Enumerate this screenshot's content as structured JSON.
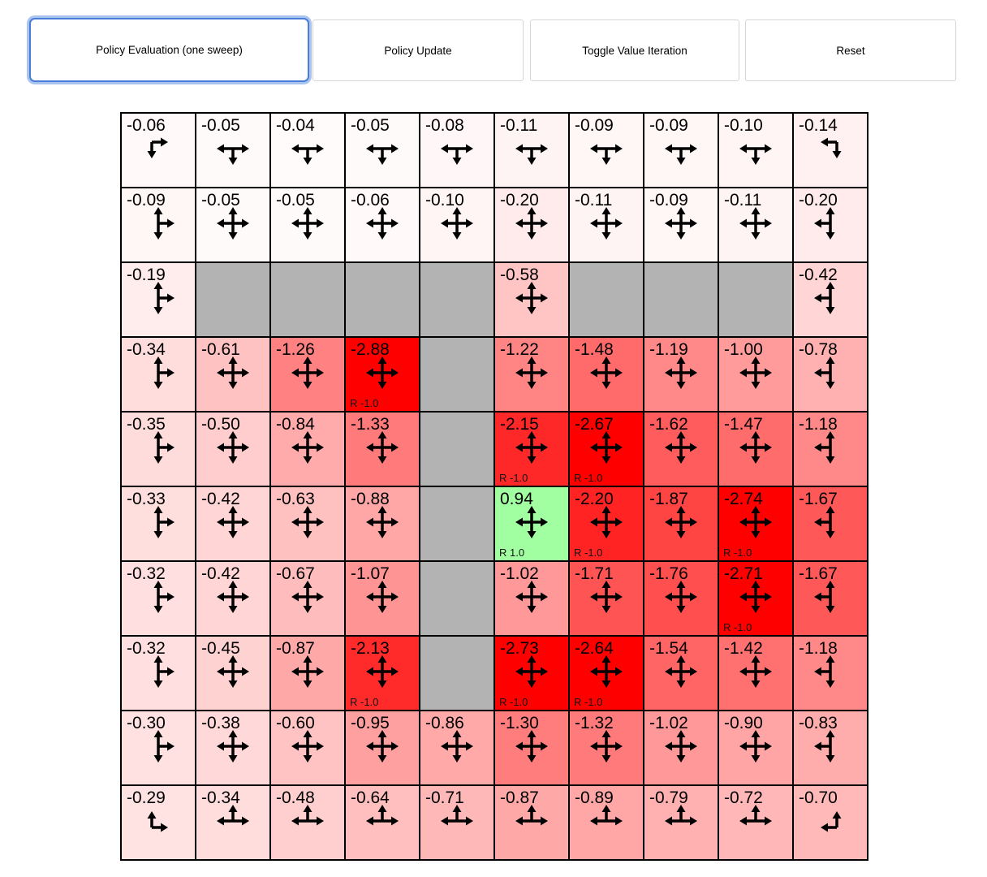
{
  "toolbar": {
    "buttons": [
      {
        "label": "Policy Evaluation (one sweep)",
        "focused": true
      },
      {
        "label": "Policy Update",
        "focused": false
      },
      {
        "label": "Toggle Value Iteration",
        "focused": false
      },
      {
        "label": "Reset",
        "focused": false
      }
    ]
  },
  "colors": {
    "focus_ring_outer": "#a9c4ee",
    "focus_ring_inner": "#4a7dd8",
    "wall": "#b3b3b3",
    "cell_border": "#000000",
    "positive_cell": "#a1ffa1",
    "max_negative_cell": "#ff0000",
    "arrow": "#000000"
  },
  "grid": {
    "rows": 10,
    "cols": 10,
    "cells": [
      [
        {
          "v": "-0.06"
        },
        {
          "v": "-0.05"
        },
        {
          "v": "-0.04"
        },
        {
          "v": "-0.05"
        },
        {
          "v": "-0.08"
        },
        {
          "v": "-0.11"
        },
        {
          "v": "-0.09"
        },
        {
          "v": "-0.09"
        },
        {
          "v": "-0.10"
        },
        {
          "v": "-0.14"
        }
      ],
      [
        {
          "v": "-0.09"
        },
        {
          "v": "-0.05"
        },
        {
          "v": "-0.05"
        },
        {
          "v": "-0.06"
        },
        {
          "v": "-0.10"
        },
        {
          "v": "-0.20"
        },
        {
          "v": "-0.11"
        },
        {
          "v": "-0.09"
        },
        {
          "v": "-0.11"
        },
        {
          "v": "-0.20"
        }
      ],
      [
        {
          "v": "-0.19"
        },
        {
          "wall": true
        },
        {
          "wall": true
        },
        {
          "wall": true
        },
        {
          "wall": true
        },
        {
          "v": "-0.58"
        },
        {
          "wall": true
        },
        {
          "wall": true
        },
        {
          "wall": true
        },
        {
          "v": "-0.42"
        }
      ],
      [
        {
          "v": "-0.34"
        },
        {
          "v": "-0.61"
        },
        {
          "v": "-1.26"
        },
        {
          "v": "-2.88",
          "r": "R -1.0"
        },
        {
          "wall": true
        },
        {
          "v": "-1.22"
        },
        {
          "v": "-1.48"
        },
        {
          "v": "-1.19"
        },
        {
          "v": "-1.00"
        },
        {
          "v": "-0.78"
        }
      ],
      [
        {
          "v": "-0.35"
        },
        {
          "v": "-0.50"
        },
        {
          "v": "-0.84"
        },
        {
          "v": "-1.33"
        },
        {
          "wall": true
        },
        {
          "v": "-2.15",
          "r": "R -1.0"
        },
        {
          "v": "-2.67",
          "r": "R -1.0"
        },
        {
          "v": "-1.62"
        },
        {
          "v": "-1.47"
        },
        {
          "v": "-1.18"
        }
      ],
      [
        {
          "v": "-0.33"
        },
        {
          "v": "-0.42"
        },
        {
          "v": "-0.63"
        },
        {
          "v": "-0.88"
        },
        {
          "wall": true
        },
        {
          "v": "0.94",
          "r": "R 1.0"
        },
        {
          "v": "-2.20",
          "r": "R -1.0"
        },
        {
          "v": "-1.87"
        },
        {
          "v": "-2.74",
          "r": "R -1.0"
        },
        {
          "v": "-1.67"
        }
      ],
      [
        {
          "v": "-0.32"
        },
        {
          "v": "-0.42"
        },
        {
          "v": "-0.67"
        },
        {
          "v": "-1.07"
        },
        {
          "wall": true
        },
        {
          "v": "-1.02"
        },
        {
          "v": "-1.71"
        },
        {
          "v": "-1.76"
        },
        {
          "v": "-2.71",
          "r": "R -1.0"
        },
        {
          "v": "-1.67"
        }
      ],
      [
        {
          "v": "-0.32"
        },
        {
          "v": "-0.45"
        },
        {
          "v": "-0.87"
        },
        {
          "v": "-2.13",
          "r": "R -1.0"
        },
        {
          "wall": true
        },
        {
          "v": "-2.73",
          "r": "R -1.0"
        },
        {
          "v": "-2.64",
          "r": "R -1.0"
        },
        {
          "v": "-1.54"
        },
        {
          "v": "-1.42"
        },
        {
          "v": "-1.18"
        }
      ],
      [
        {
          "v": "-0.30"
        },
        {
          "v": "-0.38"
        },
        {
          "v": "-0.60"
        },
        {
          "v": "-0.95"
        },
        {
          "v": "-0.86"
        },
        {
          "v": "-1.30"
        },
        {
          "v": "-1.32"
        },
        {
          "v": "-1.02"
        },
        {
          "v": "-0.90"
        },
        {
          "v": "-0.83"
        }
      ],
      [
        {
          "v": "-0.29"
        },
        {
          "v": "-0.34"
        },
        {
          "v": "-0.48"
        },
        {
          "v": "-0.64"
        },
        {
          "v": "-0.71"
        },
        {
          "v": "-0.87"
        },
        {
          "v": "-0.89"
        },
        {
          "v": "-0.79"
        },
        {
          "v": "-0.72"
        },
        {
          "v": "-0.70"
        }
      ]
    ]
  }
}
